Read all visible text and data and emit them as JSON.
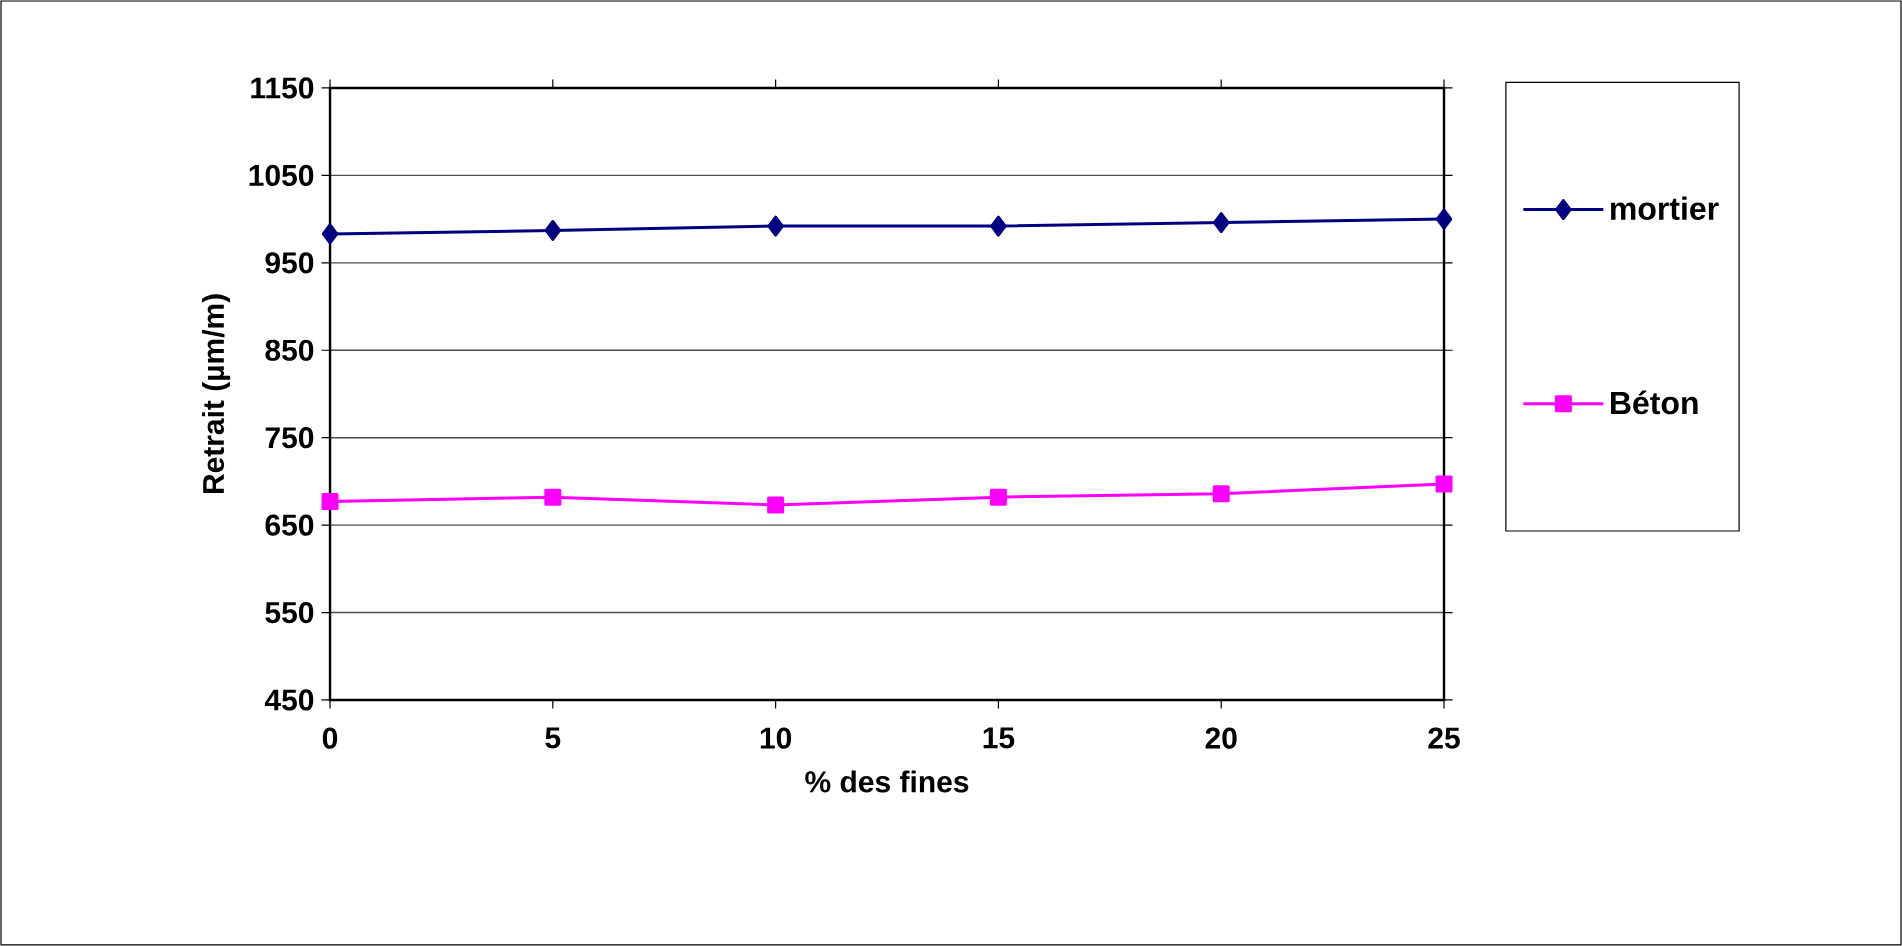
{
  "chart_data": {
    "type": "line",
    "xlabel": "% des fines",
    "ylabel": "Retrait (µm/m)",
    "x": [
      0,
      5,
      10,
      15,
      20,
      25
    ],
    "series": [
      {
        "name": "mortier",
        "color": "#000080",
        "marker": "diamond",
        "values": [
          983,
          987,
          992,
          992,
          996,
          1000
        ]
      },
      {
        "name": "Béton",
        "color": "#ff00ff",
        "marker": "square",
        "values": [
          677,
          682,
          673,
          682,
          686,
          697
        ]
      }
    ],
    "xlim": [
      0,
      25
    ],
    "xticks": [
      0,
      5,
      10,
      15,
      20,
      25
    ],
    "ylim": [
      450,
      1150
    ],
    "yticks": [
      450,
      550,
      650,
      750,
      850,
      950,
      1050,
      1150
    ],
    "grid": "y",
    "legend": "right"
  }
}
